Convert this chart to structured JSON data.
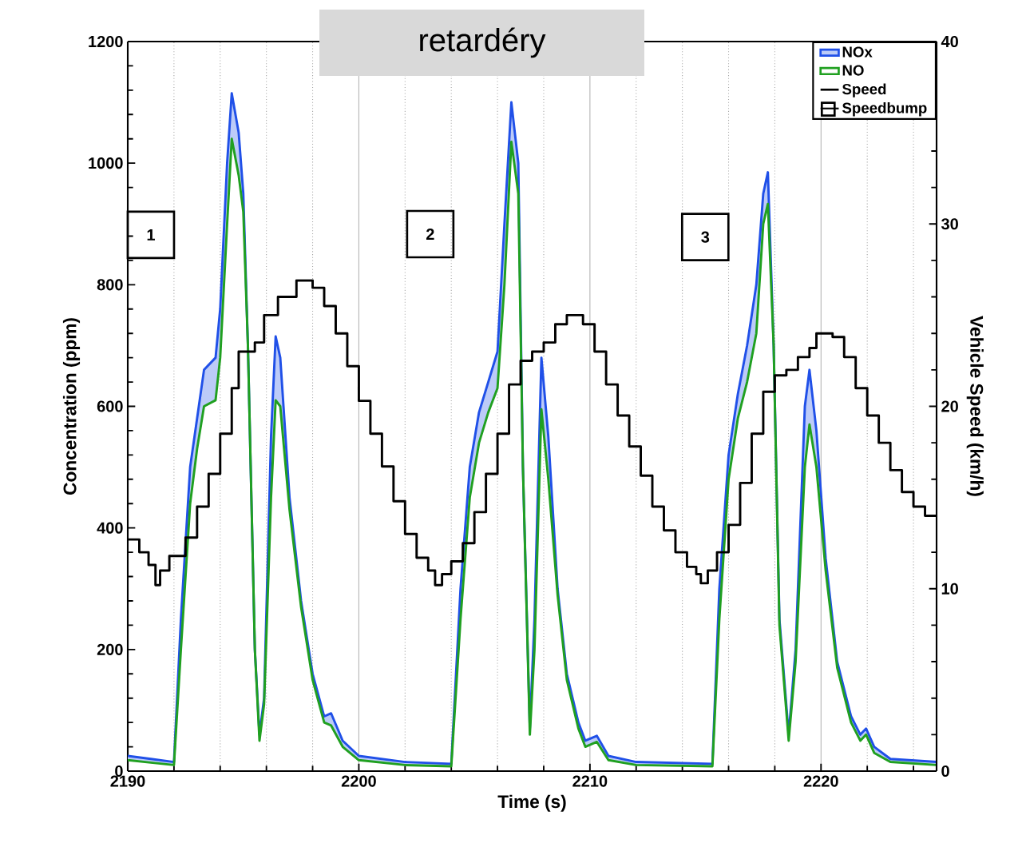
{
  "chart_data": {
    "type": "line",
    "title": "retardéry",
    "xlabel": "Time (s)",
    "ylabel": "Concentration (ppm)",
    "y2label": "Vehicle Speed (km/h)",
    "xlim": [
      2190,
      2225
    ],
    "xticks": [
      2190,
      {
        "value": 2192,
        "label": null
      },
      {
        "value": 2194,
        "label": null
      },
      {
        "value": 2196,
        "label": null
      },
      {
        "value": 2198,
        "label": null
      },
      2200,
      {
        "value": 2202,
        "label": null
      },
      {
        "value": 2204,
        "label": null
      },
      {
        "value": 2206,
        "label": null
      },
      {
        "value": 2208,
        "label": null
      },
      2210,
      {
        "value": 2212,
        "label": null
      },
      {
        "value": 2214,
        "label": null
      },
      {
        "value": 2216,
        "label": null
      },
      {
        "value": 2218,
        "label": null
      },
      2220,
      {
        "value": 2222,
        "label": null
      },
      {
        "value": 2224,
        "label": null
      }
    ],
    "ylim": [
      0,
      1200
    ],
    "yticks": [
      0,
      200,
      400,
      600,
      800,
      1000,
      1200
    ],
    "y2lim": [
      0,
      40
    ],
    "y2ticks": [
      0,
      10,
      20,
      30,
      40
    ],
    "grid": "x",
    "legend": "top right",
    "annotations": [
      "1",
      "2",
      "3",
      "Speedbump"
    ],
    "series": [
      {
        "name": "NOx",
        "type": "area",
        "color": "#2050e8",
        "x": [
          2190.0,
          2191.0,
          2192.0,
          2192.3,
          2192.7,
          2193.0,
          2193.3,
          2193.8,
          2194.0,
          2194.3,
          2194.5,
          2194.8,
          2195.0,
          2195.2,
          2195.5,
          2195.7,
          2195.9,
          2196.2,
          2196.4,
          2196.6,
          2197.0,
          2197.5,
          2198.0,
          2198.5,
          2198.8,
          2199.3,
          2200.0,
          2202.0,
          2204.0,
          2204.4,
          2204.8,
          2205.2,
          2205.6,
          2206.0,
          2206.3,
          2206.6,
          2206.9,
          2207.1,
          2207.4,
          2207.6,
          2207.9,
          2208.2,
          2208.6,
          2209.0,
          2209.5,
          2209.8,
          2210.3,
          2210.8,
          2212.0,
          2215.3,
          2215.6,
          2216.0,
          2216.4,
          2216.8,
          2217.2,
          2217.5,
          2217.7,
          2217.95,
          2218.2,
          2218.6,
          2218.9,
          2219.3,
          2219.5,
          2219.8,
          2220.2,
          2220.7,
          2221.3,
          2221.7,
          2221.95,
          2222.3,
          2223.0,
          2225.0
        ],
        "values": [
          25,
          20,
          15,
          250,
          500,
          580,
          660,
          680,
          760,
          1000,
          1115,
          1050,
          950,
          700,
          200,
          60,
          120,
          550,
          715,
          680,
          450,
          280,
          160,
          90,
          95,
          50,
          25,
          15,
          12,
          300,
          500,
          590,
          640,
          690,
          900,
          1100,
          1000,
          500,
          70,
          250,
          680,
          550,
          300,
          160,
          80,
          50,
          58,
          25,
          15,
          12,
          300,
          520,
          620,
          700,
          800,
          950,
          985,
          700,
          250,
          60,
          200,
          600,
          660,
          560,
          350,
          180,
          90,
          60,
          70,
          40,
          20,
          15
        ]
      },
      {
        "name": "NO",
        "type": "line",
        "color": "#20a020",
        "x": [
          2190.0,
          2191.0,
          2192.0,
          2192.3,
          2192.7,
          2193.0,
          2193.3,
          2193.8,
          2194.0,
          2194.3,
          2194.5,
          2194.8,
          2195.0,
          2195.2,
          2195.5,
          2195.7,
          2195.9,
          2196.2,
          2196.4,
          2196.6,
          2197.0,
          2197.5,
          2198.0,
          2198.5,
          2198.8,
          2199.3,
          2200.0,
          2202.0,
          2204.0,
          2204.4,
          2204.8,
          2205.2,
          2205.6,
          2206.0,
          2206.3,
          2206.6,
          2206.9,
          2207.1,
          2207.4,
          2207.6,
          2207.9,
          2208.2,
          2208.6,
          2209.0,
          2209.5,
          2209.8,
          2210.3,
          2210.8,
          2212.0,
          2215.3,
          2215.6,
          2216.0,
          2216.4,
          2216.8,
          2217.2,
          2217.5,
          2217.7,
          2217.95,
          2218.2,
          2218.6,
          2218.9,
          2219.3,
          2219.5,
          2219.8,
          2220.2,
          2220.7,
          2221.3,
          2221.7,
          2221.95,
          2222.3,
          2223.0,
          2225.0
        ],
        "values": [
          18,
          14,
          10,
          200,
          440,
          530,
          600,
          610,
          680,
          900,
          1040,
          980,
          920,
          700,
          200,
          50,
          110,
          450,
          610,
          600,
          430,
          270,
          150,
          80,
          75,
          40,
          18,
          10,
          8,
          250,
          450,
          540,
          590,
          630,
          800,
          1035,
          950,
          500,
          60,
          200,
          595,
          480,
          290,
          150,
          70,
          40,
          48,
          18,
          10,
          8,
          250,
          480,
          580,
          640,
          720,
          900,
          933,
          700,
          240,
          50,
          180,
          500,
          570,
          500,
          330,
          170,
          80,
          50,
          60,
          30,
          15,
          10
        ]
      },
      {
        "name": "Speed",
        "type": "step",
        "axis": "y2",
        "color": "#000000",
        "x": [
          2190.0,
          2190.5,
          2190.9,
          2191.2,
          2191.4,
          2191.8,
          2192.5,
          2193.0,
          2193.5,
          2194.0,
          2194.5,
          2194.8,
          2195.5,
          2195.9,
          2196.5,
          2197.3,
          2198.0,
          2198.5,
          2199.0,
          2199.5,
          2200.0,
          2200.5,
          2201.0,
          2201.5,
          2202.0,
          2202.5,
          2203.0,
          2203.3,
          2203.6,
          2204.0,
          2204.5,
          2205.0,
          2205.5,
          2206.0,
          2206.5,
          2207.0,
          2207.5,
          2208.0,
          2208.5,
          2209.0,
          2209.7,
          2210.2,
          2210.7,
          2211.2,
          2211.7,
          2212.2,
          2212.7,
          2213.2,
          2213.7,
          2214.2,
          2214.6,
          2214.8,
          2215.1,
          2215.5,
          2216.0,
          2216.5,
          2217.0,
          2217.5,
          2218.0,
          2218.5,
          2219.0,
          2219.5,
          2219.8,
          2220.5,
          2221.0,
          2221.5,
          2222.0,
          2222.5,
          2223.0,
          2223.5,
          2224.0,
          2224.5,
          2225.0
        ],
        "values": [
          12.7,
          12.0,
          11.3,
          10.2,
          11.0,
          11.8,
          12.8,
          14.5,
          16.3,
          18.5,
          21.0,
          23.0,
          23.5,
          25.0,
          26.0,
          26.9,
          26.5,
          25.5,
          24.0,
          22.2,
          20.3,
          18.5,
          16.7,
          14.8,
          13.0,
          11.7,
          11.0,
          10.2,
          10.8,
          11.5,
          12.5,
          14.2,
          16.3,
          18.5,
          21.2,
          22.5,
          23.0,
          23.5,
          24.5,
          25.0,
          24.5,
          23.0,
          21.2,
          19.5,
          17.8,
          16.2,
          14.5,
          13.2,
          12.0,
          11.2,
          10.8,
          10.3,
          11.0,
          12.0,
          13.5,
          15.8,
          18.5,
          20.8,
          21.7,
          22.0,
          22.7,
          23.2,
          24.0,
          23.8,
          22.7,
          21.0,
          19.5,
          18.0,
          16.5,
          15.3,
          14.5,
          14.0,
          14.0
        ]
      }
    ]
  }
}
